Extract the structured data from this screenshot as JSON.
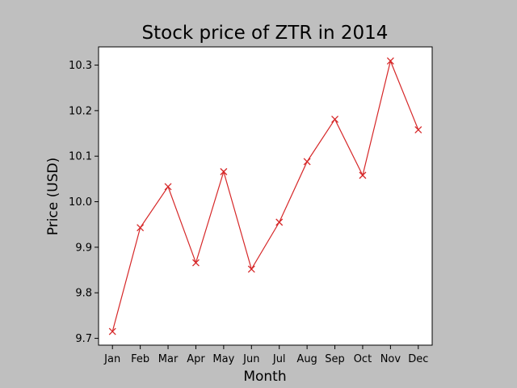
{
  "chart_data": {
    "type": "line",
    "title": "Stock price of ZTR in 2014",
    "xlabel": "Month",
    "ylabel": "Price (USD)",
    "categories": [
      "Jan",
      "Feb",
      "Mar",
      "Apr",
      "May",
      "Jun",
      "Jul",
      "Aug",
      "Sep",
      "Oct",
      "Nov",
      "Dec"
    ],
    "series": [
      {
        "values": [
          9.715,
          9.943,
          10.033,
          9.866,
          10.066,
          9.852,
          9.955,
          10.088,
          10.181,
          10.058,
          10.309,
          10.158
        ],
        "color": "#d62728",
        "marker": "x"
      }
    ],
    "ylim": [
      9.685,
      10.34
    ],
    "yticks": [
      9.7,
      9.8,
      9.9,
      10.0,
      10.1,
      10.2,
      10.3
    ],
    "ytick_labels": [
      "9.7",
      "9.8",
      "9.9",
      "10.0",
      "10.1",
      "10.2",
      "10.3"
    ],
    "grid": false,
    "background": "#bfbfbf",
    "plot_background": "#ffffff"
  }
}
